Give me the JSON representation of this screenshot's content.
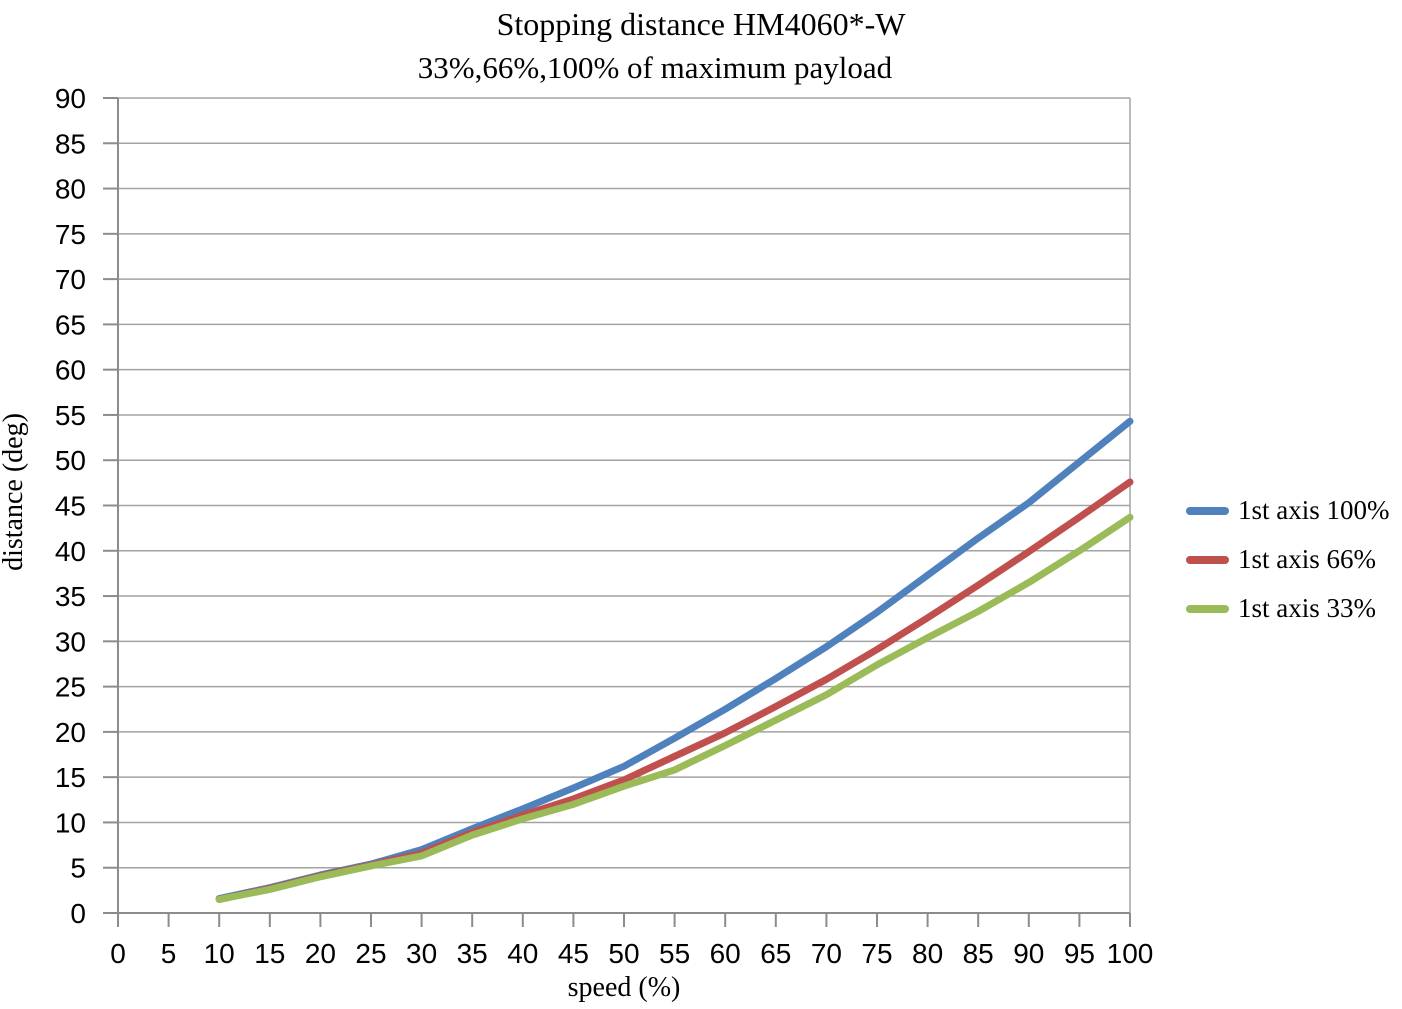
{
  "chart_data": {
    "type": "line",
    "title": "Stopping distance HM4060*-W",
    "subtitle": "33%,66%,100% of maximum payload",
    "xlabel": "speed (%)",
    "ylabel": "distance (deg)",
    "xlim": [
      0,
      100
    ],
    "ylim": [
      0,
      90
    ],
    "x_ticks": [
      0,
      5,
      10,
      15,
      20,
      25,
      30,
      35,
      40,
      45,
      50,
      55,
      60,
      65,
      70,
      75,
      80,
      85,
      90,
      95,
      100
    ],
    "y_ticks": [
      0,
      5,
      10,
      15,
      20,
      25,
      30,
      35,
      40,
      45,
      50,
      55,
      60,
      65,
      70,
      75,
      80,
      85,
      90
    ],
    "grid": "horizontal",
    "legend_position": "right",
    "x": [
      10,
      15,
      20,
      25,
      30,
      35,
      40,
      45,
      50,
      55,
      60,
      65,
      70,
      75,
      80,
      85,
      90,
      95,
      100
    ],
    "series": [
      {
        "name": "1st axis 100%",
        "color": "#4F81BD",
        "values": [
          1.6,
          2.8,
          4.2,
          5.4,
          7.0,
          9.3,
          11.5,
          13.8,
          16.2,
          19.3,
          22.5,
          25.9,
          29.4,
          33.2,
          37.3,
          41.4,
          45.3,
          49.8,
          54.3
        ]
      },
      {
        "name": "1st axis 66%",
        "color": "#C0504D",
        "values": [
          1.5,
          2.7,
          4.1,
          5.3,
          6.6,
          8.9,
          10.8,
          12.6,
          14.7,
          17.3,
          19.9,
          22.8,
          25.8,
          29.1,
          32.6,
          36.2,
          39.9,
          43.7,
          47.6
        ]
      },
      {
        "name": "1st axis 33%",
        "color": "#9BBB59",
        "values": [
          1.5,
          2.6,
          4.0,
          5.2,
          6.3,
          8.6,
          10.4,
          12.0,
          14.0,
          15.8,
          18.5,
          21.3,
          24.1,
          27.4,
          30.4,
          33.3,
          36.5,
          40.0,
          43.7
        ]
      }
    ],
    "colors": {
      "gridline": "#A3A3A3",
      "axis": "#8C8C8C",
      "text": "#000000"
    }
  }
}
